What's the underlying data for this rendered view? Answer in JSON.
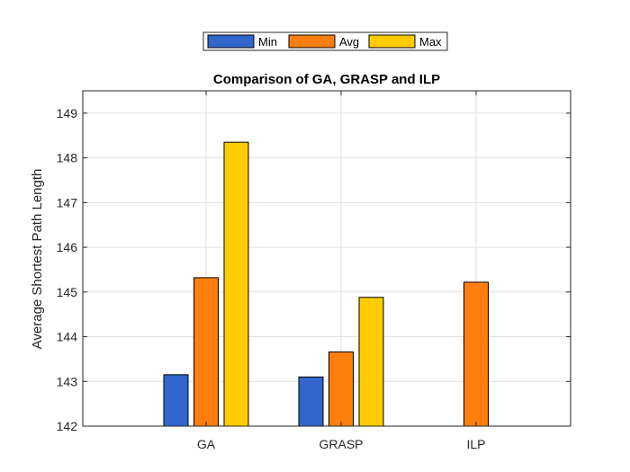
{
  "chart_data": {
    "type": "bar",
    "title": "Comparison of GA, GRASP and ILP",
    "xlabel": "",
    "ylabel": "Average Shortest Path Length",
    "categories": [
      "GA",
      "GRASP",
      "ILP"
    ],
    "ylim": [
      142,
      149.5
    ],
    "yticks": [
      142,
      143,
      144,
      145,
      146,
      147,
      148,
      149
    ],
    "series": [
      {
        "name": "Min",
        "color": "#3366cc",
        "values": [
          143.15,
          143.1,
          null
        ]
      },
      {
        "name": "Avg",
        "color": "#ff7f0e",
        "values": [
          145.32,
          143.66,
          145.22
        ]
      },
      {
        "name": "Max",
        "color": "#ffcc00",
        "values": [
          148.35,
          144.88,
          null
        ]
      }
    ],
    "grid": true,
    "legend_position": "top-center-outside"
  }
}
